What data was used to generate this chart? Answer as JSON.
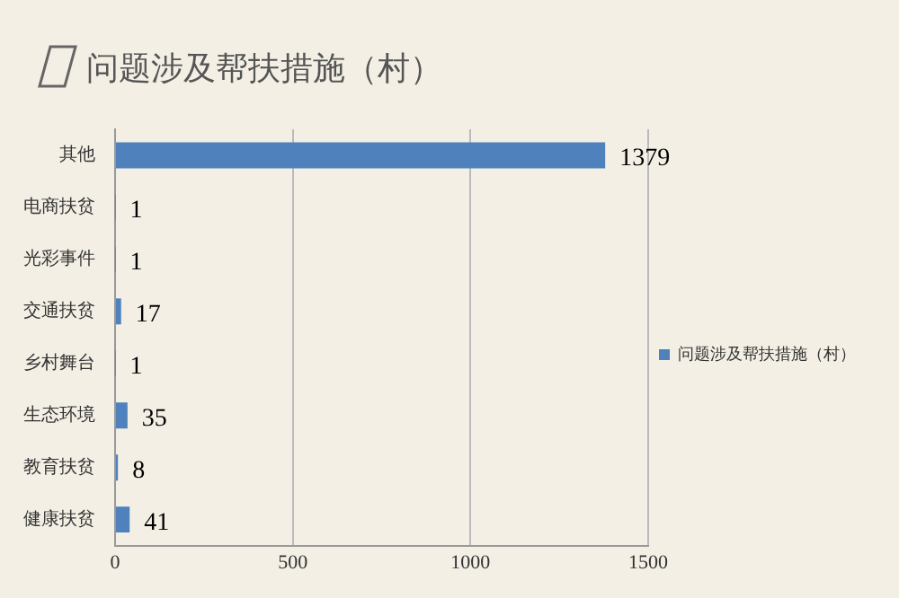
{
  "chart_data": {
    "type": "bar",
    "orientation": "horizontal",
    "title": "问题涉及帮扶措施（村）",
    "categories": [
      "其他",
      "电商扶贫",
      "光彩事件",
      "交通扶贫",
      "乡村舞台",
      "生态环境",
      "教育扶贫",
      "健康扶贫"
    ],
    "series": [
      {
        "name": "问题涉及帮扶措施（村）",
        "color": "#4f81bd",
        "values": [
          1379,
          1,
          1,
          17,
          1,
          35,
          8,
          41
        ]
      }
    ],
    "xlim": [
      0,
      1500
    ],
    "xticks": [
      0,
      500,
      1000,
      1500
    ],
    "grid": "x",
    "legend": "right",
    "data_labels": true
  }
}
